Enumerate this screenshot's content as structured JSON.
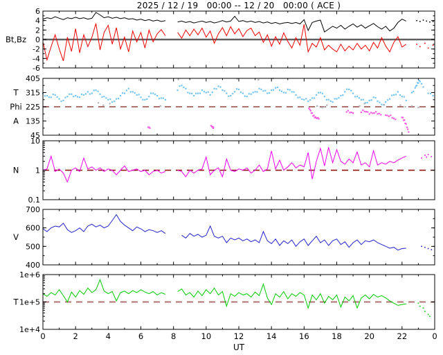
{
  "title": "2025 / 12 / 19   00:00 -- 12 / 20   00:00 ( ACE )",
  "xlabel": "UT",
  "x_axis": {
    "min": 0,
    "max": 24,
    "major_step": 2,
    "minor_step": 1,
    "tick_labels": [
      "0",
      "2",
      "4",
      "6",
      "8",
      "10",
      "12",
      "14",
      "16",
      "18",
      "20",
      "22",
      "0"
    ]
  },
  "colors": {
    "bt": "#000000",
    "bz": "#ee0000",
    "phi_main": "#72c5f0",
    "phi_gray": "#b2b2b2",
    "phi_alt": "#f45ce0",
    "n": "#ee00ee",
    "v": "#2222cc",
    "t": "#00cc00",
    "ref_rosy": "#b07070",
    "ref_dark_red": "#8b0000",
    "zero_gray": "#606060",
    "axis": "#000000"
  },
  "chart_data": [
    {
      "name": "bt_bz",
      "type": "line",
      "scale": "linear",
      "ylim": [
        -6,
        6
      ],
      "yticks": [
        {
          "v": 6,
          "label": "6"
        },
        {
          "v": 4,
          "label": "4"
        },
        {
          "v": 2,
          "label": "2"
        },
        {
          "v": 0,
          "label": "0"
        },
        {
          "v": -2,
          "label": "-2"
        },
        {
          "v": -4,
          "label": "-4"
        },
        {
          "v": -6,
          "label": "-6"
        }
      ],
      "minor_step": 1,
      "axis_labels": [
        {
          "text": "Bt,Bz",
          "at": 0
        }
      ],
      "zero_line": {
        "value": 0,
        "color": "#606060",
        "width": 2.5
      },
      "series": [
        {
          "name": "Bt",
          "color": "#000000",
          "mode": "line",
          "x0": 0,
          "dx": 0.25,
          "y": [
            4.3,
            4.6,
            4.4,
            4.8,
            4.5,
            4.2,
            4.6,
            4.4,
            4.7,
            4.4,
            4.6,
            4.3,
            4.5,
            5.7,
            5.2,
            4.6,
            4.8,
            4.5,
            4.7,
            4.4,
            4.6,
            4.3,
            4.4,
            4.1,
            4.3,
            4.0,
            4.2,
            3.9,
            4.1,
            3.8,
            4.0,
            null,
            null,
            3.7,
            3.9,
            3.6,
            3.8,
            3.5,
            3.7,
            3.9,
            3.6,
            3.8,
            3.5,
            3.7,
            4.0,
            3.7,
            3.9,
            4.9,
            3.8,
            4.0,
            3.7,
            3.9,
            3.6,
            3.8,
            3.5,
            3.7,
            3.4,
            3.6,
            3.3,
            3.5,
            3.6,
            3.4,
            3.6,
            3.3,
            4.2,
            1.9,
            3.6,
            3.9,
            4.1,
            1.6,
            2.2,
            2.8,
            2.4,
            3.0,
            2.2,
            2.8,
            3.3,
            2.6,
            3.1,
            2.4,
            2.9,
            3.4,
            2.7,
            2.2,
            2.8,
            1.8,
            2.4,
            3.6,
            4.3,
            3.9,
            null,
            null,
            null,
            null,
            null,
            null,
            null
          ]
        },
        {
          "name": "Bz",
          "color": "#ee0000",
          "mode": "line",
          "x0": 0,
          "dx": 0.25,
          "y": [
            -0.5,
            -4.3,
            -1.5,
            1.0,
            -2.0,
            -4.5,
            0.5,
            -2.5,
            2.3,
            -2.8,
            1.0,
            -1.5,
            0.5,
            3.4,
            -2.2,
            1.5,
            3.0,
            -1.0,
            2.5,
            -2.0,
            0.5,
            -2.6,
            1.8,
            -0.5,
            1.5,
            -1.8,
            2.0,
            -0.5,
            1.2,
            2.1,
            0.8,
            null,
            null,
            1.5,
            0.3,
            2.0,
            0.8,
            2.2,
            1.0,
            2.4,
            0.5,
            1.8,
            -0.8,
            1.2,
            2.5,
            0.8,
            2.7,
            1.2,
            2.3,
            0.6,
            1.9,
            2.4,
            0.8,
            1.6,
            -0.6,
            1.0,
            -1.4,
            0.6,
            -1.0,
            1.4,
            -0.4,
            -1.8,
            0.4,
            -1.2,
            3.2,
            -2.6,
            -0.8,
            -1.6,
            0.4,
            -2.2,
            -1.2,
            -2.0,
            -2.6,
            -1.0,
            -2.4,
            -1.4,
            -2.2,
            -0.8,
            -2.0,
            -1.2,
            -2.4,
            -0.6,
            -1.8,
            0.4,
            -1.4,
            -2.6,
            -0.6,
            0.6,
            -1.6,
            -1.0,
            null,
            null,
            null,
            null,
            null,
            null,
            null
          ]
        },
        {
          "name": "Bt-late",
          "color": "#000000",
          "mode": "dots",
          "x": [
            22.9,
            23.1,
            23.3,
            23.5,
            23.7,
            23.9
          ],
          "y": [
            4.0,
            3.8,
            4.1,
            3.9,
            3.7,
            3.8
          ]
        },
        {
          "name": "Bz-late",
          "color": "#ee0000",
          "mode": "dots",
          "x": [
            22.9,
            23.1,
            23.4,
            23.6,
            23.9
          ],
          "y": [
            -1.0,
            -1.5,
            -0.8,
            -1.8,
            -1.2
          ]
        }
      ]
    },
    {
      "name": "phi",
      "type": "scatter",
      "scale": "linear",
      "ylim": [
        45,
        405
      ],
      "yticks": [
        {
          "v": 405,
          "label": "405"
        },
        {
          "v": 315,
          "label": "315"
        },
        {
          "v": 225,
          "label": "225"
        },
        {
          "v": 135,
          "label": "135"
        },
        {
          "v": 45,
          "label": "45"
        }
      ],
      "minor_step": 45,
      "axis_labels": [
        {
          "text": "T",
          "at": 315
        },
        {
          "text": "Phi",
          "at": 225
        },
        {
          "text": "A",
          "at": 135
        }
      ],
      "ref_line": {
        "value": 225,
        "color": "#b07070",
        "width": 2
      },
      "series": [
        {
          "name": "phi-main",
          "color": "#72c5f0",
          "mode": "scatter",
          "x0": 0,
          "dx": 0.25,
          "y": [
            310,
            295,
            285,
            300,
            275,
            265,
            290,
            305,
            295,
            285,
            300,
            320,
            310,
            330,
            305,
            290,
            270,
            255,
            275,
            295,
            310,
            340,
            320,
            300,
            285,
            270,
            290,
            310,
            295,
            280,
            270,
            null,
            null,
            330,
            360,
            340,
            310,
            295,
            310,
            330,
            315,
            300,
            340,
            355,
            330,
            310,
            295,
            320,
            335,
            310,
            290,
            305,
            320,
            340,
            325,
            310,
            330,
            345,
            330,
            315,
            335,
            320,
            300,
            285,
            270,
            260,
            280,
            300,
            315,
            290,
            270,
            255,
            275,
            295,
            320,
            335,
            310,
            290,
            270,
            250,
            265,
            285,
            260,
            240,
            255,
            275,
            300,
            320,
            290,
            265,
            null,
            null,
            null,
            null,
            null,
            null,
            null
          ]
        },
        {
          "name": "phi-gray",
          "color": "#b2b2b2",
          "mode": "scatter",
          "x": [
            3.4,
            3.7,
            4.1,
            5.9,
            7.2,
            8.3,
            10.4,
            11.9,
            13.2,
            14.1,
            16.8,
            17.1,
            17.4,
            19.4,
            19.7,
            20.9,
            21.9,
            22.2,
            22.6,
            23.0
          ],
          "y": [
            250,
            235,
            245,
            395,
            230,
            398,
            50,
            402,
            396,
            404,
            230,
            220,
            235,
            230,
            245,
            238,
            235,
            225,
            230,
            220
          ]
        },
        {
          "name": "phi-alt",
          "color": "#f45ce0",
          "mode": "scatter",
          "x": [
            6.45,
            6.55,
            10.3,
            10.4,
            10.45,
            16.3,
            16.4,
            16.5,
            16.6,
            16.7,
            16.8,
            16.9,
            18.6,
            18.8,
            19.0,
            19.5,
            19.7,
            19.9,
            20.1,
            20.3,
            20.5,
            20.7,
            21.0,
            21.2,
            21.4,
            21.6,
            22.0,
            22.1,
            22.2,
            22.3,
            22.4
          ],
          "y": [
            95,
            90,
            105,
            98,
            95,
            215,
            200,
            185,
            170,
            160,
            152,
            148,
            192,
            188,
            185,
            190,
            195,
            192,
            188,
            185,
            180,
            175,
            172,
            165,
            155,
            145,
            158,
            140,
            120,
            95,
            65
          ]
        },
        {
          "name": "phi-late",
          "color": "#72c5f0",
          "mode": "scatter",
          "x": [
            22.6,
            22.8,
            22.9,
            23.0,
            23.1,
            23.3,
            23.6,
            23.9
          ],
          "y": [
            315,
            345,
            360,
            375,
            385,
            350,
            310,
            295
          ]
        }
      ]
    },
    {
      "name": "n",
      "type": "line",
      "scale": "log",
      "ylim": [
        0.1,
        10
      ],
      "yticks": [
        {
          "v": 10,
          "label": "10"
        },
        {
          "v": 1,
          "label": "1"
        },
        {
          "v": 0.1,
          "label": "0.1"
        }
      ],
      "axis_labels": [
        {
          "text": "N",
          "at": 1
        }
      ],
      "ref_line": {
        "value": 1,
        "color": "#8b0000",
        "width": 1.5
      },
      "series": [
        {
          "name": "N",
          "color": "#ee00ee",
          "mode": "line",
          "x0": 0,
          "dx": 0.25,
          "y": [
            1.0,
            1.1,
            3.0,
            0.9,
            1.1,
            0.8,
            0.4,
            1.0,
            1.2,
            0.9,
            2.6,
            1.1,
            1.3,
            1.0,
            1.2,
            0.9,
            1.1,
            1.0,
            0.7,
            1.0,
            1.4,
            0.9,
            1.0,
            1.1,
            0.9,
            1.0,
            0.7,
            0.9,
            1.0,
            0.8,
            0.9,
            null,
            null,
            1.0,
            0.9,
            0.6,
            1.0,
            0.8,
            1.0,
            1.1,
            2.8,
            0.7,
            1.0,
            1.2,
            0.6,
            2.4,
            1.0,
            0.9,
            1.1,
            1.0,
            1.2,
            0.8,
            1.0,
            1.5,
            0.9,
            1.1,
            4.5,
            1.1,
            2.2,
            1.0,
            1.3,
            1.8,
            1.2,
            1.5,
            1.3,
            4.0,
            0.5,
            2.0,
            5.5,
            1.4,
            6.0,
            1.8,
            5.0,
            2.0,
            1.6,
            2.4,
            1.8,
            4.2,
            1.5,
            1.8,
            1.3,
            4.6,
            1.5,
            1.8,
            1.6,
            2.0,
            1.8,
            2.2,
            2.6,
            3.0,
            null,
            null,
            null,
            null,
            null,
            null,
            null
          ]
        },
        {
          "name": "N-late",
          "color": "#ee00ee",
          "mode": "dots",
          "x": [
            23.2,
            23.4,
            23.5,
            23.6,
            23.8
          ],
          "y": [
            2.6,
            3.2,
            2.8,
            3.4,
            2.9
          ]
        }
      ]
    },
    {
      "name": "v",
      "type": "line",
      "scale": "linear",
      "ylim": [
        400,
        700
      ],
      "yticks": [
        {
          "v": 700,
          "label": "700"
        },
        {
          "v": 600,
          "label": "600"
        },
        {
          "v": 500,
          "label": "500"
        },
        {
          "v": 400,
          "label": "400"
        }
      ],
      "minor_step": 50,
      "axis_labels": [
        {
          "text": "V",
          "at": 550
        }
      ],
      "series": [
        {
          "name": "V",
          "color": "#2222cc",
          "mode": "line",
          "x0": 0,
          "dx": 0.25,
          "y": [
            595,
            580,
            600,
            610,
            605,
            625,
            590,
            575,
            585,
            600,
            580,
            610,
            620,
            605,
            615,
            600,
            610,
            640,
            672,
            635,
            615,
            600,
            585,
            605,
            595,
            580,
            590,
            585,
            575,
            585,
            570,
            null,
            null,
            null,
            560,
            545,
            570,
            555,
            565,
            550,
            560,
            610,
            555,
            545,
            555,
            520,
            545,
            535,
            545,
            530,
            540,
            525,
            535,
            520,
            580,
            530,
            515,
            540,
            505,
            530,
            515,
            535,
            500,
            525,
            540,
            505,
            530,
            555,
            520,
            535,
            505,
            530,
            540,
            510,
            525,
            495,
            520,
            535,
            510,
            530,
            525,
            535,
            520,
            510,
            500,
            490,
            495,
            480,
            488,
            490,
            null,
            null,
            null,
            null,
            null,
            null,
            null
          ]
        },
        {
          "name": "V-late",
          "color": "#2222cc",
          "mode": "dots",
          "x": [
            23.2,
            23.4,
            23.6,
            23.8
          ],
          "y": [
            500,
            495,
            488,
            482
          ]
        }
      ]
    },
    {
      "name": "t",
      "type": "line",
      "scale": "log",
      "ylim": [
        10000.0,
        1000000.0
      ],
      "yticks": [
        {
          "v": 1000000.0,
          "label": "1e+6"
        },
        {
          "v": 100000.0,
          "label": "1e+5"
        },
        {
          "v": 10000.0,
          "label": "1e+4"
        }
      ],
      "axis_labels": [
        {
          "text": "T",
          "at": 100000.0
        }
      ],
      "ref_line": {
        "value": 100000.0,
        "color": "#b07070",
        "width": 2
      },
      "series": [
        {
          "name": "T",
          "color": "#00cc00",
          "mode": "line",
          "x0": 0,
          "dx": 0.25,
          "y": [
            200000.0,
            160000.0,
            220000.0,
            180000.0,
            280000.0,
            170000.0,
            100000.0,
            230000.0,
            150000.0,
            260000.0,
            190000.0,
            320000.0,
            220000.0,
            280000.0,
            650000.0,
            250000.0,
            200000.0,
            240000.0,
            110000.0,
            220000.0,
            250000.0,
            200000.0,
            260000.0,
            220000.0,
            280000.0,
            230000.0,
            200000.0,
            240000.0,
            180000.0,
            220000.0,
            190000.0,
            null,
            null,
            240000.0,
            300000.0,
            180000.0,
            220000.0,
            150000.0,
            250000.0,
            170000.0,
            280000.0,
            200000.0,
            320000.0,
            180000.0,
            240000.0,
            70000.0,
            200000.0,
            160000.0,
            220000.0,
            180000.0,
            200000.0,
            150000.0,
            230000.0,
            170000.0,
            450000.0,
            140000.0,
            80000.0,
            200000.0,
            150000.0,
            240000.0,
            130000.0,
            200000.0,
            160000.0,
            220000.0,
            180000.0,
            60000.0,
            180000.0,
            120000.0,
            200000.0,
            90000.0,
            160000.0,
            120000.0,
            180000.0,
            65000.0,
            150000.0,
            110000.0,
            170000.0,
            60000.0,
            140000.0,
            180000.0,
            130000.0,
            190000.0,
            150000.0,
            170000.0,
            140000.0,
            110000.0,
            90000.0,
            75000.0,
            80000.0,
            85000.0,
            null,
            null,
            null,
            null,
            null,
            null,
            null
          ]
        },
        {
          "name": "T-late",
          "color": "#00cc00",
          "mode": "dots",
          "x": [
            23.0,
            23.1,
            23.3,
            23.4,
            23.6,
            23.7
          ],
          "y": [
            90000.0,
            70000.0,
            60000.0,
            45000.0,
            35000.0,
            30000.0
          ]
        }
      ]
    }
  ]
}
